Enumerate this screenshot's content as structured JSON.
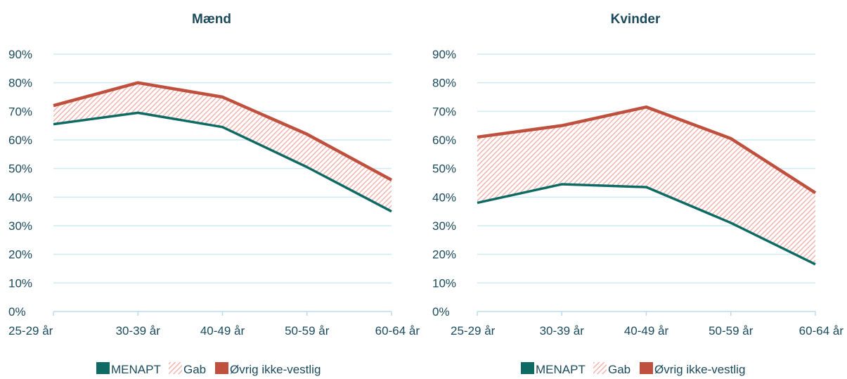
{
  "legend": {
    "menapt": "MENAPT",
    "gap": "Gab",
    "other": "Øvrig ikke-vestlig"
  },
  "colors": {
    "menapt": "#0e6b64",
    "other": "#c0503e",
    "gap_hatch": "#f2a9a0",
    "grid": "#cfeaf4",
    "text": "#1b4a5c"
  },
  "chart_data": [
    {
      "type": "area",
      "title": "Mænd",
      "categories": [
        "25-29 år",
        "30-39 år",
        "40-49 år",
        "50-59 år",
        "60-64 år"
      ],
      "ylim": [
        0,
        90
      ],
      "yticks": [
        "0%",
        "10%",
        "20%",
        "30%",
        "40%",
        "50%",
        "60%",
        "70%",
        "80%",
        "90%"
      ],
      "series": [
        {
          "name": "MENAPT",
          "values": [
            65.5,
            69.5,
            64.5,
            50.5,
            35
          ]
        },
        {
          "name": "Øvrig ikke-vestlig",
          "values": [
            72,
            80,
            75,
            62,
            46
          ]
        }
      ],
      "gap_series": "Gab",
      "grid": true,
      "legend_position": "bottom"
    },
    {
      "type": "area",
      "title": "Kvinder",
      "categories": [
        "25-29 år",
        "30-39 år",
        "40-49 år",
        "50-59 år",
        "60-64 år"
      ],
      "ylim": [
        0,
        90
      ],
      "yticks": [
        "0%",
        "10%",
        "20%",
        "30%",
        "40%",
        "50%",
        "60%",
        "70%",
        "80%",
        "90%"
      ],
      "series": [
        {
          "name": "MENAPT",
          "values": [
            38,
            44.5,
            43.5,
            31,
            16.5
          ]
        },
        {
          "name": "Øvrig ikke-vestlig",
          "values": [
            61,
            65,
            71.5,
            60.5,
            41.5
          ]
        }
      ],
      "gap_series": "Gab",
      "grid": true,
      "legend_position": "bottom"
    }
  ]
}
